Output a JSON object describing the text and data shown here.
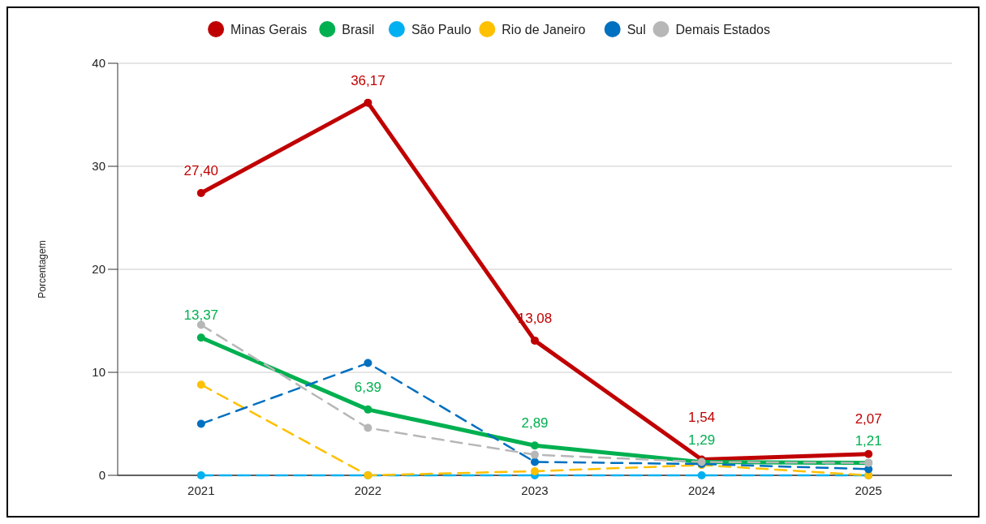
{
  "chart_data": {
    "type": "line",
    "ylabel": "Porcentagem",
    "categories": [
      "2021",
      "2022",
      "2023",
      "2024",
      "2025"
    ],
    "ylim": [
      0,
      40
    ],
    "yticks": [
      0,
      10,
      20,
      30,
      40
    ],
    "grid": "y",
    "legend": "top",
    "marker": "circle",
    "series": [
      {
        "name": "Minas Gerais",
        "color": "#c00000",
        "line_style": "solid",
        "values": [
          27.4,
          36.17,
          13.08,
          1.54,
          2.07
        ],
        "value_labels": [
          "27,40",
          "36,17",
          "13,08",
          "1,54",
          "2,07"
        ]
      },
      {
        "name": "Brasil",
        "color": "#00b050",
        "line_style": "solid",
        "values": [
          13.37,
          6.39,
          2.89,
          1.29,
          1.21
        ],
        "value_labels": [
          "13,37",
          "6,39",
          "2,89",
          "1,29",
          "1,21"
        ]
      },
      {
        "name": "São Paulo",
        "color": "#00b0f0",
        "line_style": "dashed",
        "values": [
          0,
          0,
          0,
          0,
          0
        ]
      },
      {
        "name": "Rio de Janeiro",
        "color": "#ffc000",
        "line_style": "dashed",
        "values": [
          8.8,
          0,
          0.4,
          1.0,
          0
        ]
      },
      {
        "name": "Sul",
        "color": "#0070c0",
        "line_style": "dashed",
        "values": [
          5.0,
          10.9,
          1.3,
          1.1,
          0.6
        ]
      },
      {
        "name": "Demais Estados",
        "color": "#b7b7b7",
        "line_style": "dashed",
        "values": [
          14.6,
          4.6,
          2.0,
          1.3,
          1.2
        ]
      }
    ]
  }
}
